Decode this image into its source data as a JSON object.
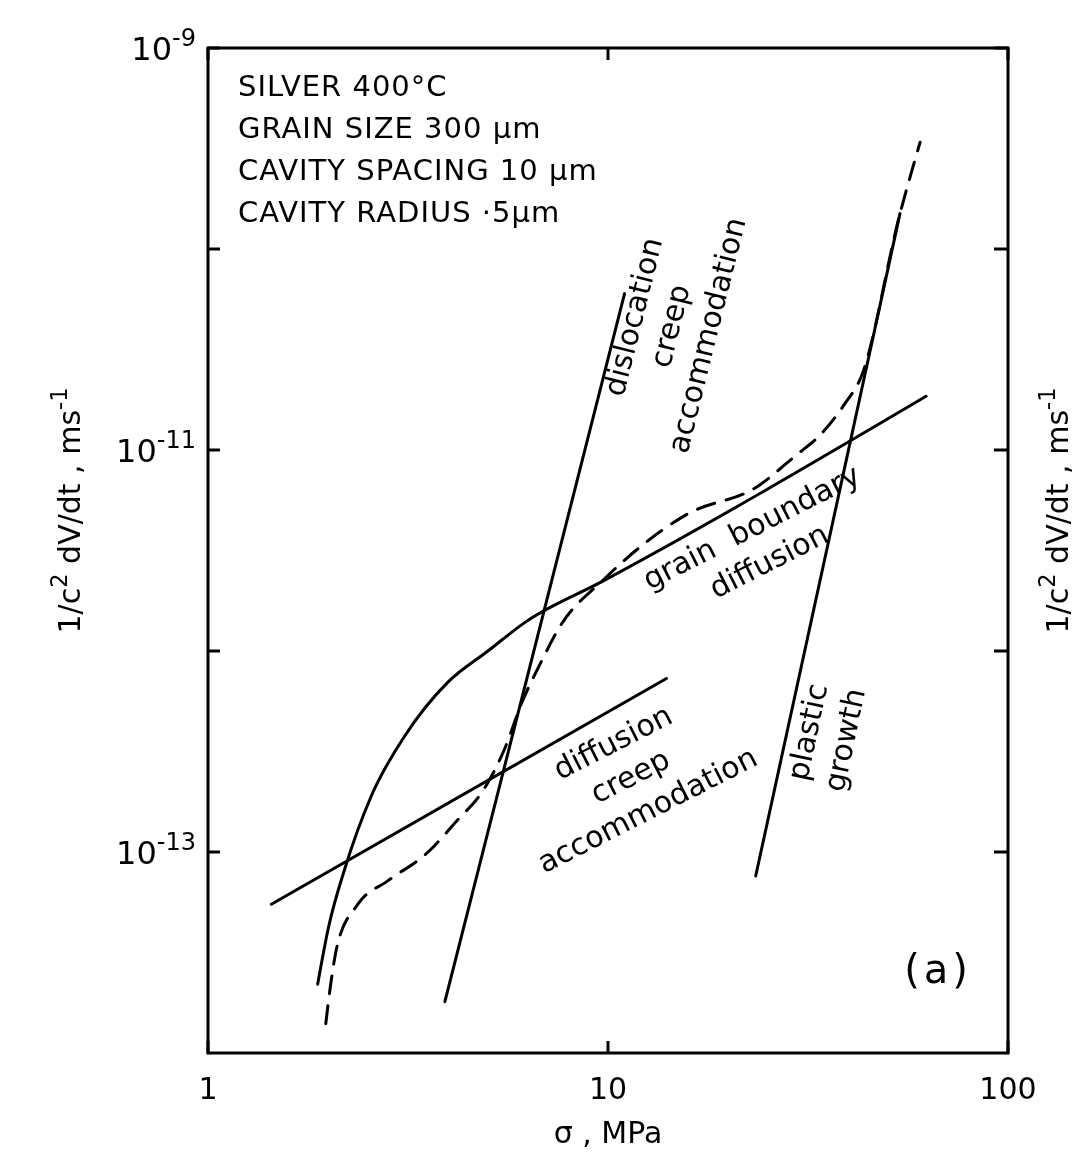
{
  "chart_data": {
    "type": "line",
    "xlabel": "σ , MPa",
    "ylabel": "1/c$^{2}$ dV/dt , ms$^{-1}$",
    "y2label": "1/c$^{2}$ dV/dt , ms$^{-1}$",
    "log": "xy",
    "xlim": [
      1,
      100
    ],
    "xticks": [
      1,
      10,
      100
    ],
    "ylim": [
      1e-14,
      1e-09
    ],
    "yticks": [
      {
        "value": 1e-09,
        "label": "10$^{-9}$"
      },
      {
        "value": 1e-10,
        "label": null
      },
      {
        "value": 1e-11,
        "label": "10$^{-11}$"
      },
      {
        "value": 1e-12,
        "label": null
      },
      {
        "value": 1e-13,
        "label": "10$^{-13}$"
      }
    ],
    "series": [
      {
        "color": "#000000",
        "x": [
          1.88,
          2.0,
          2.2,
          2.56,
          3.11,
          3.98,
          5.01,
          6.24,
          9.6,
          62.4
        ],
        "values": [
          2.2e-14,
          4.2e-14,
          8.3e-14,
          1.9e-13,
          3.8e-13,
          7e-13,
          1e-12,
          1.4e-12,
          2.2e-12,
          1.85e-11
        ]
      },
      {
        "color": "#000000",
        "line_style": "dashed",
        "x": [
          1.97,
          2.02,
          2.11,
          2.37,
          2.82,
          3.55,
          4.15,
          4.93,
          5.53,
          6.06,
          6.8,
          7.63,
          9.6,
          15.8,
          23.7,
          29.3,
          34.1,
          39.1,
          42.9,
          53.7,
          60.3
        ],
        "values": [
          1.4e-14,
          2.1e-14,
          3.5e-14,
          5.5e-14,
          7.2e-14,
          1e-13,
          1.4e-13,
          2.1e-13,
          3.3e-13,
          5.4e-13,
          8.8e-13,
          1.35e-12,
          2.2e-12,
          4.8e-12,
          6.6e-12,
          9.3e-12,
          1.2e-11,
          1.7e-11,
          2.3e-11,
          1.5e-10,
          3.4e-10
        ]
      },
      {
        "color": "#000000",
        "x": [
          3.91,
          11.0
        ],
        "values": [
          1.8e-14,
          6e-11
        ]
      },
      {
        "color": "#000000",
        "x": [
          1.44,
          14.0
        ],
        "values": [
          5.5e-14,
          7.3e-13
        ]
      },
      {
        "color": "#000000",
        "x": [
          23.4,
          53.7
        ],
        "values": [
          7.6e-14,
          1.5e-10
        ]
      }
    ],
    "annotations": [
      "SILVER  400°C\nGRAIN SIZE  300 µm\nCAVITY SPACING  10 µm\nCAVITY RADIUS  ·5µm",
      "dislocation\ncreep\naccommodation",
      "grain  boundary\ndiffusion",
      "diffusion\ncreep\naccommodation",
      "plastic\ngrowth",
      "(a)"
    ]
  }
}
